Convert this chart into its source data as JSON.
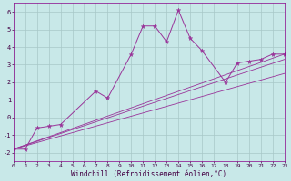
{
  "x_main": [
    0,
    1,
    2,
    3,
    4,
    7,
    8,
    10,
    11,
    12,
    13,
    14,
    15,
    16,
    18,
    19,
    20,
    21,
    22,
    23
  ],
  "y_main": [
    -1.8,
    -1.8,
    -0.6,
    -0.5,
    -0.4,
    1.5,
    1.1,
    3.6,
    5.2,
    5.2,
    4.3,
    6.1,
    4.5,
    3.8,
    2.0,
    3.1,
    3.2,
    3.3,
    3.6,
    3.6
  ],
  "line1": {
    "x": [
      0,
      23
    ],
    "y": [
      -1.8,
      3.6
    ]
  },
  "line2": {
    "x": [
      0,
      23
    ],
    "y": [
      -1.8,
      3.3
    ]
  },
  "line3": {
    "x": [
      0,
      23
    ],
    "y": [
      -1.8,
      2.5
    ]
  },
  "color": "#993399",
  "bg_color": "#c8e8e8",
  "grid_color": "#a8c8c8",
  "xlabel": "Windchill (Refroidissement éolien,°C)",
  "xlim": [
    0,
    23
  ],
  "ylim": [
    -2.5,
    6.5
  ],
  "yticks": [
    -2,
    -1,
    0,
    1,
    2,
    3,
    4,
    5,
    6
  ],
  "xticks": [
    0,
    1,
    2,
    3,
    4,
    5,
    6,
    7,
    8,
    9,
    10,
    11,
    12,
    13,
    14,
    15,
    16,
    17,
    18,
    19,
    20,
    21,
    22,
    23
  ]
}
